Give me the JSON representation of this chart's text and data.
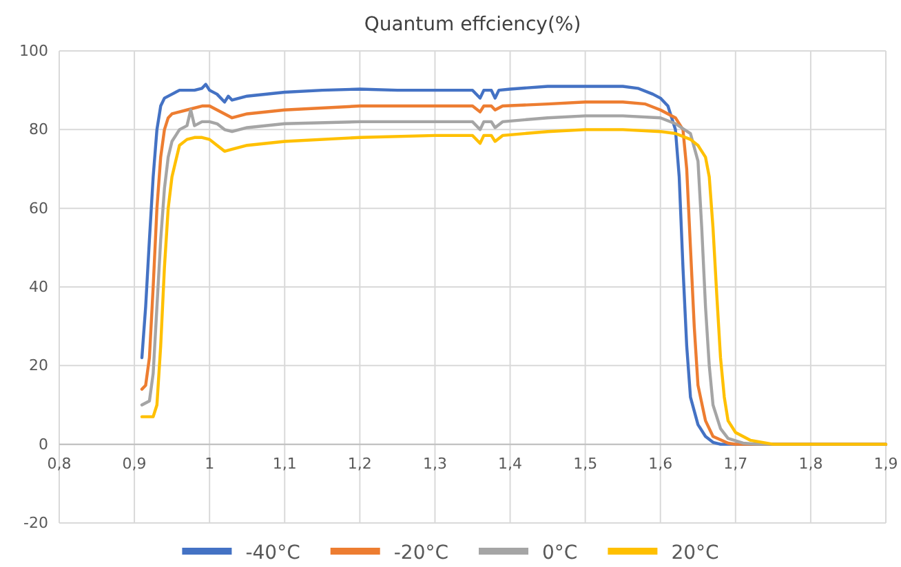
{
  "chart_data": {
    "type": "line",
    "title": "Quantum effciency(%)",
    "xlim": [
      0.8,
      1.9
    ],
    "xticks": [
      {
        "value": 0.8,
        "label": "0,8"
      },
      {
        "value": 0.9,
        "label": "0,9"
      },
      {
        "value": 1,
        "label": "1"
      },
      {
        "value": 1.1,
        "label": "1,1"
      },
      {
        "value": 1.2,
        "label": "1,2"
      },
      {
        "value": 1.3,
        "label": "1,3"
      },
      {
        "value": 1.4,
        "label": "1,4"
      },
      {
        "value": 1.5,
        "label": "1,5"
      },
      {
        "value": 1.6,
        "label": "1,6"
      },
      {
        "value": 1.7,
        "label": "1,7"
      },
      {
        "value": 1.8,
        "label": "1,8"
      },
      {
        "value": 1.9,
        "label": "1,9"
      }
    ],
    "ylim": [
      -20,
      100
    ],
    "yticks": [
      -20,
      0,
      20,
      40,
      60,
      80,
      100
    ],
    "grid": true,
    "legend": "bottom",
    "marker": "none",
    "line_style": "solid",
    "series": [
      {
        "name": "-40°C",
        "color": "#4472c4",
        "x": [
          0.91,
          0.915,
          0.92,
          0.925,
          0.93,
          0.935,
          0.94,
          0.95,
          0.96,
          0.97,
          0.98,
          0.99,
          0.995,
          1.0,
          1.01,
          1.02,
          1.025,
          1.03,
          1.05,
          1.1,
          1.15,
          1.2,
          1.25,
          1.3,
          1.35,
          1.36,
          1.365,
          1.375,
          1.38,
          1.385,
          1.4,
          1.45,
          1.5,
          1.55,
          1.57,
          1.59,
          1.6,
          1.61,
          1.62,
          1.625,
          1.63,
          1.635,
          1.64,
          1.65,
          1.66,
          1.67,
          1.68,
          1.9
        ],
        "values": [
          22,
          35,
          52,
          68,
          80,
          86,
          88,
          89,
          90,
          90,
          90,
          90.5,
          91.5,
          90,
          89,
          87,
          88.5,
          87.5,
          88.5,
          89.5,
          90,
          90.3,
          90,
          90,
          90,
          88,
          90,
          90,
          88,
          90,
          90.3,
          91,
          91,
          91,
          90.5,
          89,
          88,
          86,
          80,
          68,
          45,
          25,
          12,
          5,
          2,
          0.5,
          0,
          0
        ]
      },
      {
        "name": "-20°C",
        "color": "#ed7d31",
        "x": [
          0.91,
          0.915,
          0.92,
          0.925,
          0.93,
          0.935,
          0.94,
          0.945,
          0.95,
          0.97,
          0.99,
          1.0,
          1.01,
          1.02,
          1.03,
          1.05,
          1.1,
          1.2,
          1.3,
          1.35,
          1.36,
          1.365,
          1.375,
          1.38,
          1.39,
          1.45,
          1.5,
          1.55,
          1.58,
          1.6,
          1.62,
          1.63,
          1.635,
          1.64,
          1.645,
          1.65,
          1.66,
          1.67,
          1.69,
          1.7,
          1.9
        ],
        "values": [
          14,
          15,
          22,
          40,
          60,
          73,
          80,
          83,
          84,
          85,
          86,
          86,
          85,
          84,
          83,
          84,
          85,
          86,
          86,
          86,
          84.5,
          86,
          86,
          85,
          86,
          86.5,
          87,
          87,
          86.5,
          85,
          83,
          80,
          70,
          50,
          30,
          15,
          6,
          2,
          0.3,
          0,
          0
        ]
      },
      {
        "name": "0°C",
        "color": "#a5a5a5",
        "x": [
          0.91,
          0.92,
          0.925,
          0.93,
          0.935,
          0.94,
          0.945,
          0.95,
          0.96,
          0.97,
          0.975,
          0.98,
          0.99,
          1.0,
          1.01,
          1.02,
          1.03,
          1.05,
          1.1,
          1.2,
          1.3,
          1.35,
          1.36,
          1.365,
          1.375,
          1.38,
          1.39,
          1.45,
          1.5,
          1.55,
          1.6,
          1.62,
          1.64,
          1.65,
          1.655,
          1.66,
          1.665,
          1.67,
          1.68,
          1.69,
          1.71,
          1.73,
          1.9
        ],
        "values": [
          10,
          11,
          18,
          35,
          52,
          65,
          73,
          77,
          80,
          81,
          85,
          81,
          82,
          82,
          81.5,
          80,
          79.5,
          80.5,
          81.5,
          82,
          82,
          82,
          80,
          82,
          82,
          80.5,
          82,
          83,
          83.5,
          83.5,
          83,
          81.5,
          79,
          72,
          55,
          35,
          20,
          10,
          4,
          1.5,
          0.3,
          0,
          0
        ]
      },
      {
        "name": "20°C",
        "color": "#ffc000",
        "x": [
          0.91,
          0.925,
          0.93,
          0.935,
          0.94,
          0.945,
          0.95,
          0.955,
          0.96,
          0.97,
          0.98,
          0.99,
          1.0,
          1.01,
          1.02,
          1.03,
          1.05,
          1.1,
          1.2,
          1.3,
          1.35,
          1.36,
          1.365,
          1.375,
          1.38,
          1.39,
          1.45,
          1.5,
          1.55,
          1.6,
          1.62,
          1.64,
          1.65,
          1.66,
          1.665,
          1.67,
          1.675,
          1.68,
          1.685,
          1.69,
          1.7,
          1.72,
          1.75,
          1.9
        ],
        "values": [
          7,
          7,
          10,
          25,
          45,
          60,
          68,
          72,
          76,
          77.5,
          78,
          78,
          77.5,
          76,
          74.5,
          75,
          76,
          77,
          78,
          78.5,
          78.5,
          76.5,
          78.5,
          78.5,
          77,
          78.5,
          79.5,
          80,
          80,
          79.5,
          79,
          77.5,
          76,
          73,
          68,
          55,
          38,
          22,
          12,
          6,
          3,
          1,
          0,
          0
        ]
      }
    ]
  }
}
